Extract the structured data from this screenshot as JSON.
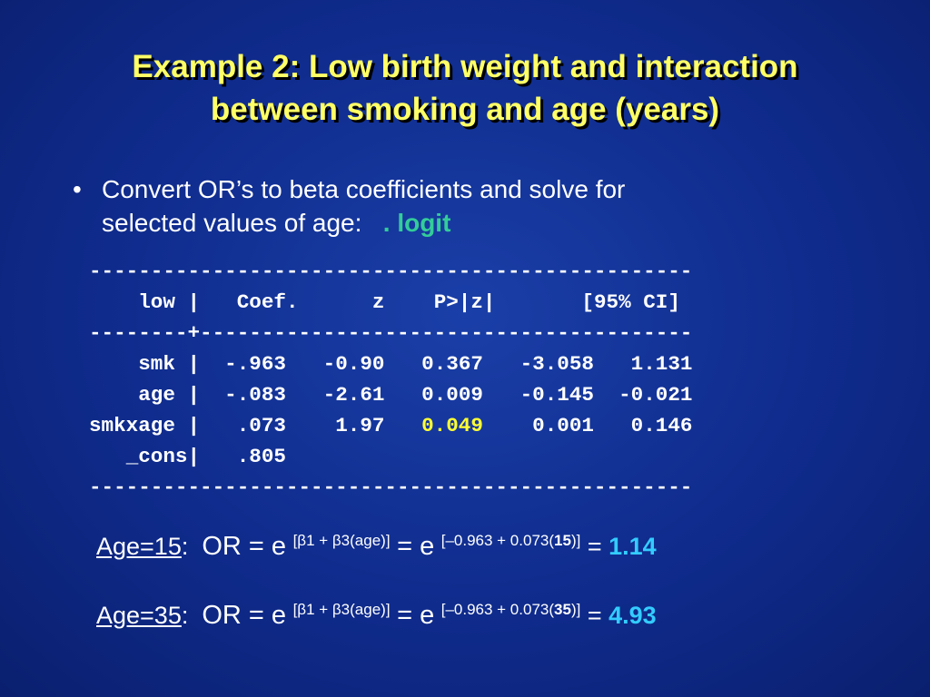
{
  "title": {
    "line1": "Example 2: Low birth weight and interaction",
    "line2": "between smoking and age (years)"
  },
  "bullet": {
    "dot": "•",
    "line1": "Convert OR’s to beta coefficients and solve for",
    "line2": "selected values of age:",
    "command": ". logit"
  },
  "stata": {
    "rule_top": "-------------------------------------------------",
    "header": {
      "var": "low",
      "sep": "|",
      "coef": "Coef.",
      "z": "z",
      "p": "P>|z|",
      "ci": "[95% CI]"
    },
    "rule_mid_left": "--------",
    "rule_mid_plus": "+",
    "rule_mid_right": "----------------------------------------",
    "rows": [
      {
        "var": "smk",
        "sep": "|",
        "coef": "-.963",
        "z": "-0.90",
        "p": "0.367",
        "lo": "-3.058",
        "hi": "1.131"
      },
      {
        "var": "age",
        "sep": "|",
        "coef": "-.083",
        "z": "-2.61",
        "p": "0.009",
        "lo": "-0.145",
        "hi": "-0.021"
      },
      {
        "var": "smkxage",
        "sep": "|",
        "coef": ".073",
        "z": "1.97",
        "p": "0.049",
        "lo": "0.001",
        "hi": "0.146"
      },
      {
        "var": "_cons",
        "sep": "|",
        "coef": ".805"
      }
    ],
    "rule_bottom": "-------------------------------------------------"
  },
  "calc": [
    {
      "label": "Age=15",
      "colon": ":",
      "or_text": "OR = e",
      "exp1": "[β1 + β3(age)]",
      "eq2": "= e",
      "exp2_pre": "[–0.963 + 0.073(",
      "exp2_val": "15",
      "exp2_post": ")]",
      "eq3": "=",
      "result": "1.14"
    },
    {
      "label": "Age=35",
      "colon": ":",
      "or_text": "OR = e",
      "exp1": "[β1 + β3(age)]",
      "eq2": "= e",
      "exp2_pre": "[–0.963 + 0.073(",
      "exp2_val": "35",
      "exp2_post": ")]",
      "eq3": "=",
      "result": "4.93"
    }
  ],
  "colors": {
    "background": "#0f2b8c",
    "title": "#ffff66",
    "command": "#33cc99",
    "highlight_p": "#ffff33",
    "result": "#33ccff"
  }
}
